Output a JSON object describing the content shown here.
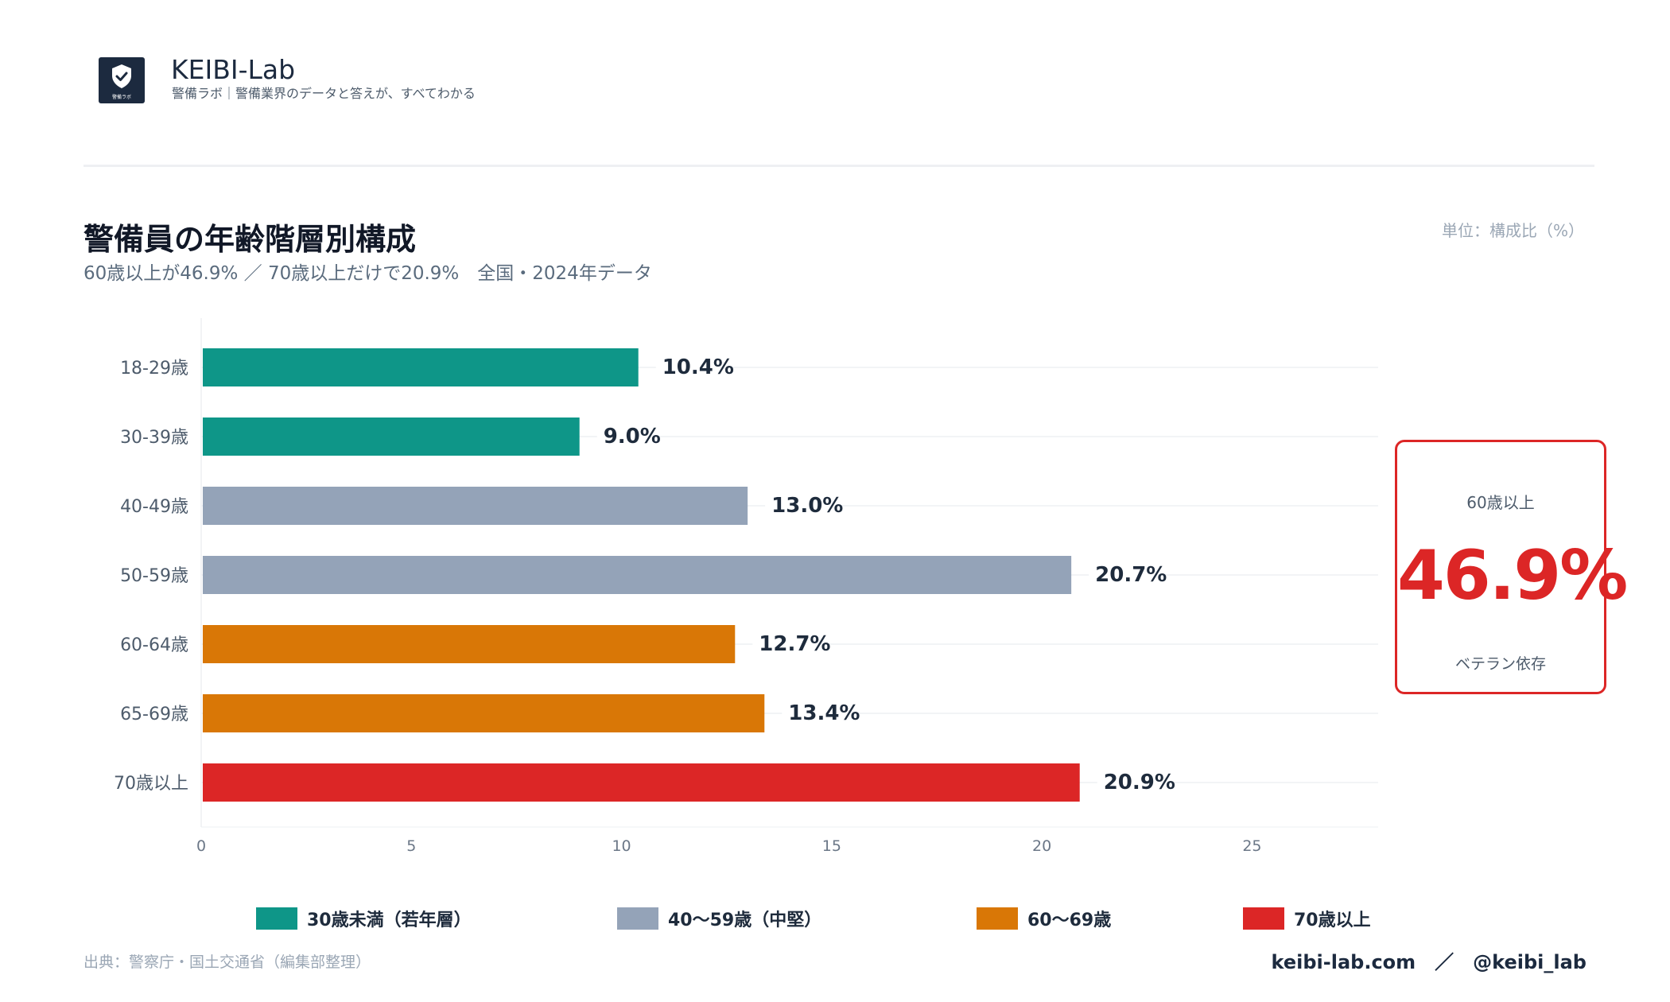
{
  "brand": {
    "name": "KEIBI-Lab",
    "tagline": "警備ラボ｜警備業界のデータと答えが、すべてわかる",
    "logo_small_text": "警備ラボ",
    "logo_icon": "shield-check-icon",
    "logo_color": "#1c2a3f"
  },
  "header": {
    "title": "警備員の年齢階層別構成",
    "subtitle": "60歳以上が46.9% ／ 70歳以上だけで20.9%　全国・2024年データ",
    "unit": "単位：構成比（%）"
  },
  "kpi": {
    "label": "60歳以上",
    "value": "46.9%",
    "caption": "ベテラン依存",
    "color": "#dc2626"
  },
  "chart_data": {
    "type": "bar",
    "orientation": "horizontal",
    "categories": [
      "18-29歳",
      "30-39歳",
      "40-49歳",
      "50-59歳",
      "60-64歳",
      "65-69歳",
      "70歳以上"
    ],
    "values": [
      10.4,
      9.0,
      13.0,
      20.7,
      12.7,
      13.4,
      20.9
    ],
    "value_labels": [
      "10.4%",
      "9.0%",
      "13.0%",
      "20.7%",
      "12.7%",
      "13.4%",
      "20.9%"
    ],
    "bar_groups": [
      0,
      0,
      1,
      1,
      2,
      2,
      3
    ],
    "x_ticks": [
      0,
      5,
      10,
      15,
      20,
      25
    ],
    "xlim": [
      0,
      28
    ],
    "grid": "horizontal-per-row",
    "legend_placement": "bottom",
    "groups": [
      {
        "name": "30歳未満（若年層）",
        "color": "#0e9688"
      },
      {
        "name": "40〜59歳（中堅）",
        "color": "#94a3b8"
      },
      {
        "name": "60〜69歳",
        "color": "#d97706"
      },
      {
        "name": "70歳以上",
        "color": "#dc2626"
      }
    ]
  },
  "footer": {
    "source": "出典：警察庁・国土交通省（編集部整理）",
    "site": "keibi-lab.com　／　@keibi_lab"
  }
}
